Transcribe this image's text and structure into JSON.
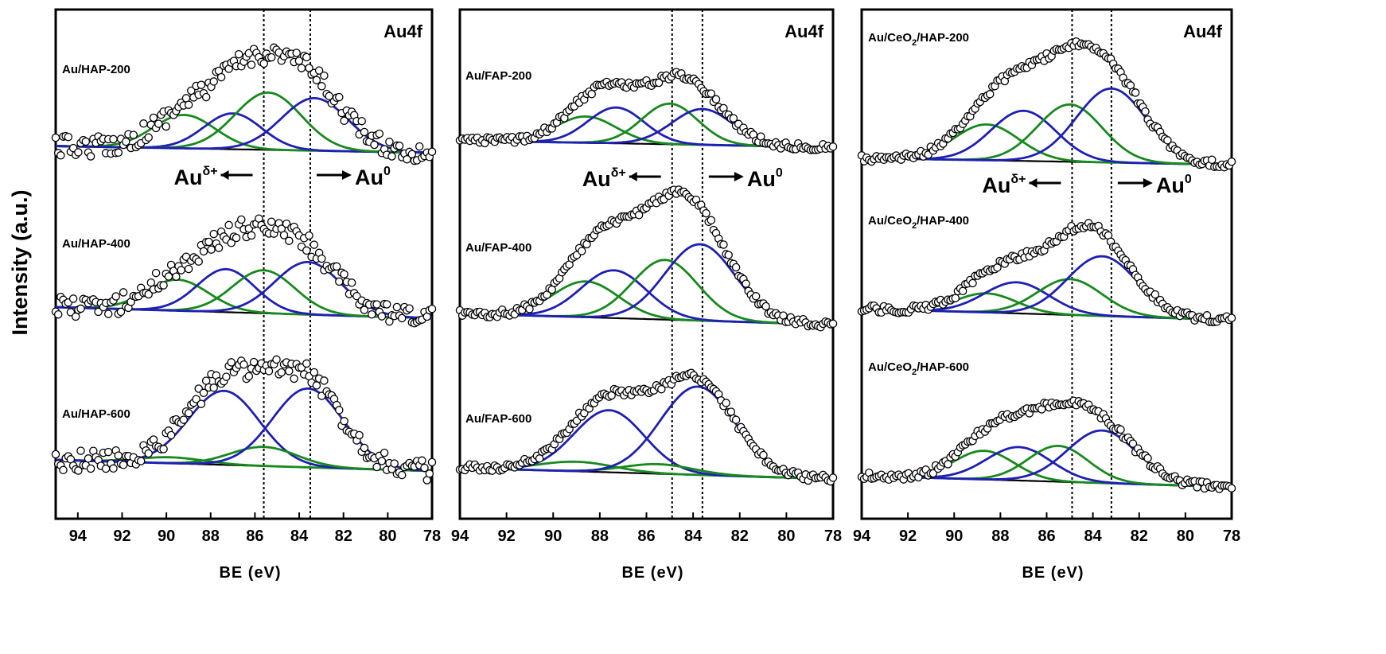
{
  "figure": {
    "ylabel": "Intensity (a.u.)"
  },
  "colors": {
    "envelope_a": "#1f1fb4",
    "envelope_b": "#168a1c",
    "baseline": "#000000",
    "points": "#000000"
  },
  "chart_data": [
    {
      "type": "line",
      "title": "Au4f",
      "xlabel": "BE (eV)",
      "xlim": [
        95,
        78
      ],
      "x_ticks": [
        "94",
        "92",
        "90",
        "88",
        "86",
        "84",
        "82",
        "80",
        "78"
      ],
      "reference_lines": [
        85.6,
        83.5
      ],
      "arrow_labels": {
        "left": "Au",
        "left_sup": "δ+",
        "right": "Au",
        "right_sup": "0"
      },
      "spectra": [
        {
          "name": "Au/HAP-200",
          "components": [
            {
              "color": "b",
              "center": 89.2,
              "amp": 0.28,
              "width": 1.4
            },
            {
              "color": "a",
              "center": 87.0,
              "amp": 0.3,
              "width": 1.3
            },
            {
              "color": "b",
              "center": 85.4,
              "amp": 0.48,
              "width": 1.5
            },
            {
              "color": "a",
              "center": 83.3,
              "amp": 0.44,
              "width": 1.5
            }
          ]
        },
        {
          "name": "Au/HAP-400",
          "components": [
            {
              "color": "b",
              "center": 89.5,
              "amp": 0.26,
              "width": 1.4
            },
            {
              "color": "a",
              "center": 87.3,
              "amp": 0.36,
              "width": 1.3
            },
            {
              "color": "b",
              "center": 85.6,
              "amp": 0.36,
              "width": 1.4
            },
            {
              "color": "a",
              "center": 83.6,
              "amp": 0.44,
              "width": 1.5
            }
          ]
        },
        {
          "name": "Au/HAP-600",
          "components": [
            {
              "color": "b",
              "center": 89.8,
              "amp": 0.05,
              "width": 1.5
            },
            {
              "color": "a",
              "center": 87.4,
              "amp": 0.62,
              "width": 1.6
            },
            {
              "color": "b",
              "center": 85.6,
              "amp": 0.16,
              "width": 1.5
            },
            {
              "color": "a",
              "center": 83.6,
              "amp": 0.66,
              "width": 1.6
            }
          ]
        }
      ]
    },
    {
      "type": "line",
      "title": "Au4f",
      "xlabel": "BE (eV)",
      "xlim": [
        94,
        78
      ],
      "x_ticks": [
        "94",
        "92",
        "90",
        "88",
        "86",
        "84",
        "82",
        "80",
        "78"
      ],
      "reference_lines": [
        84.9,
        83.6
      ],
      "arrow_labels": {
        "left": "Au",
        "left_sup": "δ+",
        "right": "Au",
        "right_sup": "0"
      },
      "spectra": [
        {
          "name": "Au/FAP-200",
          "components": [
            {
              "color": "b",
              "center": 88.6,
              "amp": 0.22,
              "width": 1.3
            },
            {
              "color": "a",
              "center": 87.3,
              "amp": 0.3,
              "width": 1.2
            },
            {
              "color": "b",
              "center": 85.0,
              "amp": 0.34,
              "width": 1.2
            },
            {
              "color": "a",
              "center": 83.6,
              "amp": 0.3,
              "width": 1.3
            }
          ]
        },
        {
          "name": "Au/FAP-400",
          "components": [
            {
              "color": "b",
              "center": 88.6,
              "amp": 0.3,
              "width": 1.4
            },
            {
              "color": "a",
              "center": 87.4,
              "amp": 0.4,
              "width": 1.4
            },
            {
              "color": "b",
              "center": 85.2,
              "amp": 0.5,
              "width": 1.4
            },
            {
              "color": "a",
              "center": 83.7,
              "amp": 0.64,
              "width": 1.5
            }
          ]
        },
        {
          "name": "Au/FAP-600",
          "components": [
            {
              "color": "b",
              "center": 89.0,
              "amp": 0.08,
              "width": 1.6
            },
            {
              "color": "a",
              "center": 87.6,
              "amp": 0.52,
              "width": 1.5
            },
            {
              "color": "b",
              "center": 85.5,
              "amp": 0.08,
              "width": 1.5
            },
            {
              "color": "a",
              "center": 83.8,
              "amp": 0.74,
              "width": 1.6
            }
          ]
        }
      ]
    },
    {
      "type": "line",
      "title": "Au4f",
      "xlabel": "BE (eV)",
      "xlim": [
        94,
        78
      ],
      "x_ticks": [
        "94",
        "92",
        "90",
        "88",
        "86",
        "84",
        "82",
        "80",
        "78"
      ],
      "reference_lines": [
        84.9,
        83.2
      ],
      "arrow_labels": {
        "left": "Au",
        "left_sup": "δ+",
        "right": "Au",
        "right_sup": "0"
      },
      "spectra": [
        {
          "name": "Au/CeO2/HAP-200",
          "name_prefix": "Au/CeO",
          "name_sub": "2",
          "name_suffix": "/HAP-200",
          "components": [
            {
              "color": "b",
              "center": 88.6,
              "amp": 0.3,
              "width": 1.4
            },
            {
              "color": "a",
              "center": 87.0,
              "amp": 0.42,
              "width": 1.4
            },
            {
              "color": "b",
              "center": 85.0,
              "amp": 0.48,
              "width": 1.4
            },
            {
              "color": "a",
              "center": 83.2,
              "amp": 0.62,
              "width": 1.5
            }
          ]
        },
        {
          "name": "Au/CeO2/HAP-400",
          "name_prefix": "Au/CeO",
          "name_sub": "2",
          "name_suffix": "/HAP-400",
          "components": [
            {
              "color": "b",
              "center": 88.6,
              "amp": 0.16,
              "width": 1.3
            },
            {
              "color": "a",
              "center": 87.3,
              "amp": 0.26,
              "width": 1.4
            },
            {
              "color": "b",
              "center": 85.0,
              "amp": 0.3,
              "width": 1.4
            },
            {
              "color": "a",
              "center": 83.6,
              "amp": 0.5,
              "width": 1.5
            }
          ]
        },
        {
          "name": "Au/CeO2/HAP-600",
          "name_prefix": "Au/CeO",
          "name_sub": "2",
          "name_suffix": "/HAP-600",
          "components": [
            {
              "color": "b",
              "center": 88.7,
              "amp": 0.24,
              "width": 1.3
            },
            {
              "color": "a",
              "center": 87.2,
              "amp": 0.28,
              "width": 1.4
            },
            {
              "color": "b",
              "center": 85.5,
              "amp": 0.3,
              "width": 1.3
            },
            {
              "color": "a",
              "center": 83.6,
              "amp": 0.44,
              "width": 1.5
            }
          ]
        }
      ]
    }
  ]
}
